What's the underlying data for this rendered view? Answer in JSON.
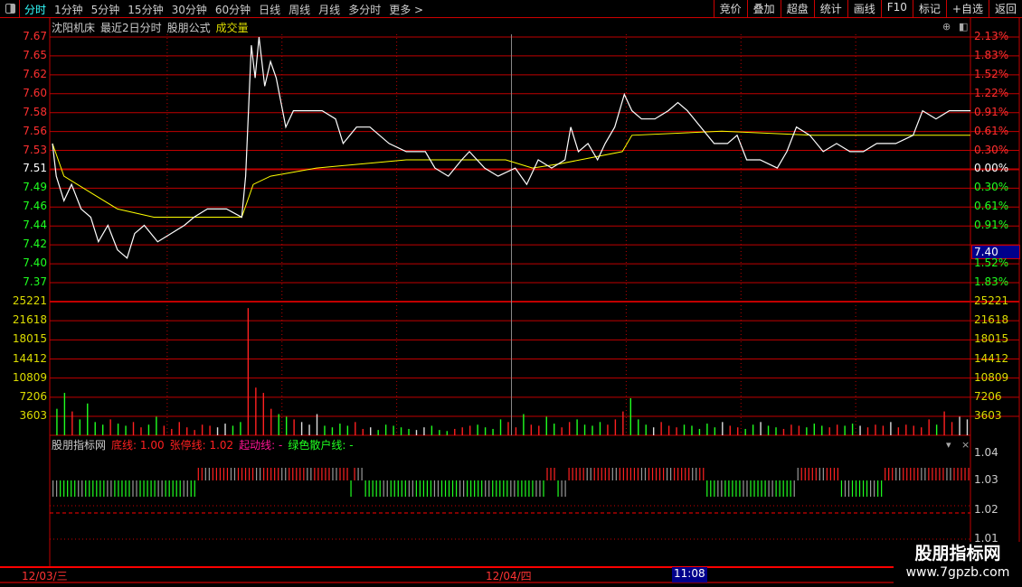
{
  "toolbar": {
    "periods": [
      "分时",
      "1分钟",
      "5分钟",
      "15分钟",
      "30分钟",
      "60分钟",
      "日线",
      "周线",
      "月线",
      "多分时",
      "更多 >"
    ],
    "active_period": "分时",
    "right_buttons": [
      "竞价",
      "叠加",
      "超盘",
      "统计",
      "画线",
      "F10",
      "标记",
      "+自选",
      "返回"
    ]
  },
  "header": {
    "stock": "沈阳机床",
    "mode": "最近2日分时",
    "formula": "股朋公式",
    "volume_label": "成交量"
  },
  "price_axis": {
    "left": [
      "7.67",
      "7.65",
      "7.62",
      "7.60",
      "7.58",
      "7.56",
      "7.53",
      "7.51",
      "7.49",
      "7.46",
      "7.44",
      "7.42",
      "7.40",
      "7.37"
    ],
    "right": [
      "2.13%",
      "1.83%",
      "1.52%",
      "1.22%",
      "0.91%",
      "0.61%",
      "0.30%",
      "0.00%",
      "0.30%",
      "0.61%",
      "0.91%",
      "1.22%",
      "1.52%",
      "1.83%"
    ],
    "prev_close": 7.51,
    "current_price_tag": "7.40"
  },
  "volume_axis": [
    "25221",
    "21618",
    "18015",
    "14412",
    "10809",
    "7206",
    "3603"
  ],
  "indicator": {
    "name": "股朋指标网",
    "legend": [
      {
        "text": "底线: 1.00",
        "color": "#ff2020"
      },
      {
        "text": "张停线: 1.02",
        "color": "#ff2020"
      },
      {
        "text": "起动线: -",
        "color": "#ff1493"
      },
      {
        "text": "绿色散户线: -",
        "color": "#20ff20"
      }
    ],
    "axis": [
      "1.04",
      "1.03",
      "1.02",
      "1.01"
    ],
    "segments": [
      [
        0,
        75,
        "down"
      ],
      [
        75,
        163,
        "up"
      ],
      [
        154,
        157,
        "down"
      ],
      [
        163,
        257,
        "down"
      ],
      [
        257,
        263,
        "up"
      ],
      [
        263,
        268,
        "down"
      ],
      [
        268,
        341,
        "up"
      ],
      [
        341,
        389,
        "down"
      ],
      [
        389,
        411,
        "up"
      ],
      [
        411,
        434,
        "down"
      ],
      [
        434,
        480,
        "up"
      ]
    ]
  },
  "time_axis": {
    "labels": [
      "12/03/三",
      "12/04/四"
    ],
    "cursor_time": "11:08"
  },
  "watermark": {
    "title": "股朋指标网",
    "url": "www.7gpzb.com"
  },
  "colors": {
    "up": "#ff2020",
    "down": "#20ff20",
    "price_line": "#ffffff",
    "avg_line": "#ffff00",
    "grid": "#c00000"
  },
  "chart_data": {
    "type": "line",
    "x_range": [
      0,
      480
    ],
    "ylim": [
      7.37,
      7.67
    ],
    "price": [
      [
        0,
        7.54
      ],
      [
        2,
        7.5
      ],
      [
        6,
        7.47
      ],
      [
        10,
        7.49
      ],
      [
        15,
        7.46
      ],
      [
        20,
        7.45
      ],
      [
        24,
        7.42
      ],
      [
        29,
        7.44
      ],
      [
        34,
        7.41
      ],
      [
        39,
        7.4
      ],
      [
        43,
        7.43
      ],
      [
        48,
        7.44
      ],
      [
        55,
        7.42
      ],
      [
        62,
        7.43
      ],
      [
        69,
        7.44
      ],
      [
        74,
        7.45
      ],
      [
        81,
        7.46
      ],
      [
        91,
        7.46
      ],
      [
        99,
        7.45
      ],
      [
        101,
        7.5
      ],
      [
        104,
        7.66
      ],
      [
        106,
        7.62
      ],
      [
        108,
        7.67
      ],
      [
        111,
        7.61
      ],
      [
        114,
        7.64
      ],
      [
        117,
        7.62
      ],
      [
        122,
        7.56
      ],
      [
        126,
        7.58
      ],
      [
        133,
        7.58
      ],
      [
        141,
        7.58
      ],
      [
        148,
        7.57
      ],
      [
        152,
        7.54
      ],
      [
        159,
        7.56
      ],
      [
        166,
        7.56
      ],
      [
        176,
        7.54
      ],
      [
        185,
        7.53
      ],
      [
        195,
        7.53
      ],
      [
        200,
        7.51
      ],
      [
        207,
        7.5
      ],
      [
        214,
        7.52
      ],
      [
        218,
        7.53
      ],
      [
        226,
        7.51
      ],
      [
        233,
        7.5
      ],
      [
        242,
        7.51
      ],
      [
        248,
        7.49
      ],
      [
        254,
        7.52
      ],
      [
        261,
        7.51
      ],
      [
        268,
        7.52
      ],
      [
        271,
        7.56
      ],
      [
        275,
        7.53
      ],
      [
        280,
        7.54
      ],
      [
        285,
        7.52
      ],
      [
        289,
        7.54
      ],
      [
        294,
        7.56
      ],
      [
        299,
        7.6
      ],
      [
        303,
        7.58
      ],
      [
        308,
        7.57
      ],
      [
        315,
        7.57
      ],
      [
        322,
        7.58
      ],
      [
        327,
        7.59
      ],
      [
        332,
        7.58
      ],
      [
        339,
        7.56
      ],
      [
        346,
        7.54
      ],
      [
        353,
        7.54
      ],
      [
        358,
        7.55
      ],
      [
        363,
        7.52
      ],
      [
        370,
        7.52
      ],
      [
        379,
        7.51
      ],
      [
        384,
        7.53
      ],
      [
        389,
        7.56
      ],
      [
        396,
        7.55
      ],
      [
        403,
        7.53
      ],
      [
        410,
        7.54
      ],
      [
        417,
        7.53
      ],
      [
        424,
        7.53
      ],
      [
        431,
        7.54
      ],
      [
        441,
        7.54
      ],
      [
        450,
        7.55
      ],
      [
        455,
        7.58
      ],
      [
        462,
        7.57
      ],
      [
        469,
        7.58
      ],
      [
        474,
        7.58
      ],
      [
        480,
        7.58
      ]
    ],
    "average": [
      [
        0,
        7.54
      ],
      [
        6,
        7.5
      ],
      [
        20,
        7.48
      ],
      [
        34,
        7.46
      ],
      [
        53,
        7.45
      ],
      [
        76,
        7.45
      ],
      [
        99,
        7.45
      ],
      [
        105,
        7.49
      ],
      [
        114,
        7.5
      ],
      [
        138,
        7.51
      ],
      [
        185,
        7.52
      ],
      [
        237,
        7.52
      ],
      [
        251,
        7.51
      ],
      [
        265,
        7.515
      ],
      [
        298,
        7.53
      ],
      [
        303,
        7.55
      ],
      [
        350,
        7.555
      ],
      [
        398,
        7.55
      ],
      [
        480,
        7.55
      ]
    ],
    "volume": [
      5000,
      8000,
      4500,
      3000,
      6000,
      2500,
      2000,
      3000,
      2200,
      1800,
      2500,
      1500,
      2000,
      3500,
      1800,
      1200,
      2500,
      1500,
      1000,
      2000,
      1800,
      1500,
      2200,
      1800,
      2500,
      24000,
      9000,
      8000,
      5000,
      4000,
      3500,
      3000,
      2500,
      2000,
      4000,
      1800,
      1500,
      2200,
      1800,
      2500,
      1200,
      1500,
      1000,
      2000,
      1800,
      1500,
      1200,
      1000,
      1500,
      1800,
      1000,
      800,
      1200,
      1500,
      1800,
      2000,
      1500,
      1200,
      3000,
      2500,
      1500,
      4000,
      2000,
      1800,
      3500,
      2200,
      1500,
      2500,
      3000,
      2000,
      1800,
      2500,
      2000,
      3000,
      4500,
      7000,
      3000,
      2000,
      1500,
      2500,
      1800,
      1500,
      2000,
      1800,
      1200,
      2200,
      1500,
      2500,
      1800,
      1500,
      1200,
      2000,
      2500,
      1800,
      1500,
      1200,
      2000,
      1800,
      1500,
      2200,
      1800,
      1500,
      2000,
      1800,
      2200,
      1800,
      1500,
      2000,
      1800,
      2500,
      1500,
      2000,
      1800,
      1500,
      3000,
      2000,
      4500,
      2500,
      3500,
      3000
    ],
    "volume_max": 25221
  }
}
